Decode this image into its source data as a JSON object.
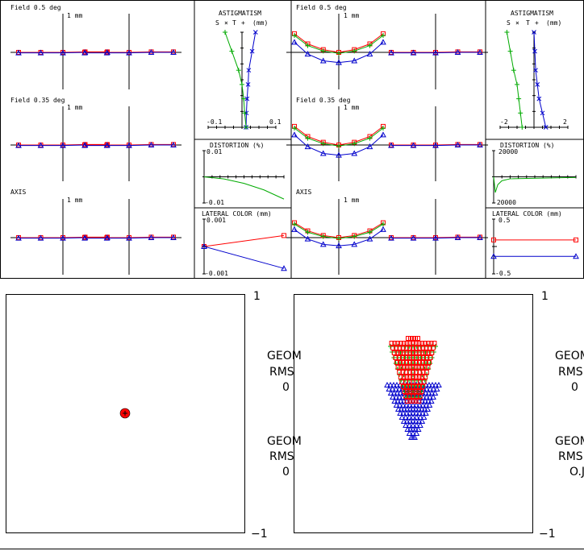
{
  "colors": {
    "red": "#ff0000",
    "green": "#00aa00",
    "blue": "#0000cc",
    "frame": "#000000"
  },
  "ray_fan_labels": {
    "field_05": "Field 0.5 deg",
    "field_035": "Field 0.35 deg",
    "axis": "AXIS",
    "scale": "1 mm"
  },
  "astig_labels": {
    "title": "ASTIGMATISM",
    "s": "S",
    "t": "T",
    "units": "(mm)",
    "s_sym": "×",
    "t_sym": "+"
  },
  "dist_labels": {
    "title": "DISTORTION (%)"
  },
  "latc_labels": {
    "title": "LATERAL COLOR (mm)"
  },
  "spot_labels": {
    "one": "1",
    "minus_one": "−1",
    "geo": "GEOM",
    "rms": "RMS",
    "zero": "0",
    "zero_j": "O.J"
  },
  "chart_data": [
    {
      "type": "line",
      "name": "ray-fan-left",
      "fields": [
        "Field 0.5 deg",
        "Field 0.35 deg",
        "AXIS"
      ],
      "scale": "1 mm",
      "series_colors": [
        "red",
        "green",
        "blue"
      ],
      "description_values": {
        "x": [
          -1,
          -0.6,
          0,
          0.6,
          1
        ],
        "tangential_y": [
          0,
          0,
          0,
          0,
          0
        ],
        "sagittal_y": [
          0,
          0,
          0,
          0,
          0
        ]
      }
    },
    {
      "type": "line",
      "name": "astigmatism-left",
      "title": "ASTIGMATISM",
      "xlim": [
        -0.1,
        0.1
      ],
      "xticks": [
        "-0.1",
        "0.1"
      ],
      "series": [
        {
          "name": "S",
          "color": "blue",
          "x": [
            0.04,
            0.03,
            0.02,
            0.018,
            0.015,
            0.013,
            0.012
          ],
          "y": [
            1,
            0.8,
            0.6,
            0.45,
            0.3,
            0.15,
            0
          ]
        },
        {
          "name": "T",
          "color": "green",
          "x": [
            -0.05,
            -0.03,
            -0.01,
            0.0,
            0.005,
            0.008,
            0.012
          ],
          "y": [
            1,
            0.8,
            0.6,
            0.45,
            0.3,
            0.15,
            0
          ]
        }
      ]
    },
    {
      "type": "line",
      "name": "distortion-left",
      "title": "DISTORTION (%)",
      "ylim": [
        -0.01,
        0.01
      ],
      "yticks": [
        "0.01",
        "-0.01"
      ],
      "series": [
        {
          "color": "green",
          "x": [
            0,
            0.25,
            0.5,
            0.75,
            1.0
          ],
          "y": [
            0,
            -0.0008,
            -0.0025,
            -0.005,
            -0.0085
          ]
        }
      ]
    },
    {
      "type": "line",
      "name": "lateral-color-left",
      "title": "LATERAL COLOR (mm)",
      "ylim": [
        -0.001,
        0.001
      ],
      "yticks": [
        "0.001",
        "-0.001"
      ],
      "series": [
        {
          "color": "red",
          "x": [
            0,
            1
          ],
          "y": [
            0,
            0.0004
          ]
        },
        {
          "color": "blue",
          "x": [
            0,
            1
          ],
          "y": [
            0,
            -0.0008
          ]
        }
      ]
    },
    {
      "type": "line",
      "name": "ray-fan-right",
      "fields": [
        "Field 0.5 deg",
        "Field 0.35 deg",
        "AXIS"
      ],
      "scale": "1 mm",
      "series_colors": [
        "red",
        "green",
        "blue"
      ],
      "description_values": {
        "x": [
          -1,
          -0.7,
          -0.35,
          0,
          0.35,
          0.7,
          1
        ],
        "red_y": [
          0.55,
          0.25,
          0.08,
          0.0,
          0.08,
          0.25,
          0.55
        ],
        "green_y": [
          0.5,
          0.2,
          0.04,
          -0.03,
          0.04,
          0.2,
          0.5
        ],
        "blue_y": [
          0.3,
          -0.05,
          -0.25,
          -0.3,
          -0.25,
          -0.05,
          0.3
        ]
      }
    },
    {
      "type": "line",
      "name": "astigmatism-right",
      "title": "ASTIGMATISM",
      "xlim": [
        -2,
        2
      ],
      "xticks": [
        "-2",
        "2"
      ],
      "series": [
        {
          "name": "S",
          "color": "blue",
          "x": [
            0.0,
            0.05,
            0.1,
            0.2,
            0.3,
            0.5,
            0.7
          ],
          "y": [
            1,
            0.8,
            0.6,
            0.45,
            0.3,
            0.15,
            0
          ]
        },
        {
          "name": "T",
          "color": "green",
          "x": [
            -1.6,
            -1.4,
            -1.2,
            -1.0,
            -0.9,
            -0.8,
            -0.7
          ],
          "y": [
            1,
            0.8,
            0.6,
            0.45,
            0.3,
            0.15,
            0
          ]
        }
      ]
    },
    {
      "type": "line",
      "name": "distortion-right",
      "title": "DISTORTION (%)",
      "ylim": [
        -20000,
        20000
      ],
      "yticks": [
        "20000",
        "-20000"
      ],
      "series": [
        {
          "color": "green",
          "x": [
            0,
            0.02,
            0.05,
            0.1,
            0.2,
            1.0
          ],
          "y": [
            0,
            -12000,
            -6000,
            -3000,
            -1500,
            -500
          ]
        }
      ]
    },
    {
      "type": "line",
      "name": "lateral-color-right",
      "title": "LATERAL COLOR (mm)",
      "ylim": [
        -0.5,
        0.5
      ],
      "yticks": [
        "0.5",
        "-0.5"
      ],
      "series": [
        {
          "color": "red",
          "x": [
            0,
            1
          ],
          "y": [
            0.12,
            0.12
          ]
        },
        {
          "color": "blue",
          "x": [
            0,
            1
          ],
          "y": [
            -0.18,
            -0.18
          ]
        }
      ]
    },
    {
      "type": "scatter",
      "name": "spot-left",
      "xlim": [
        -1,
        1
      ],
      "ylim": [
        -1,
        1
      ],
      "points": [
        {
          "color": "red",
          "x": 0,
          "y": 0.0
        }
      ]
    },
    {
      "type": "scatter",
      "name": "spot-right",
      "xlim": [
        -1,
        1
      ],
      "ylim": [
        -1,
        1
      ],
      "series": [
        {
          "name": "red squares",
          "color": "red",
          "symbol": "square"
        },
        {
          "name": "green plus",
          "color": "green",
          "symbol": "plus"
        },
        {
          "name": "blue triangles",
          "color": "blue",
          "symbol": "triangle"
        }
      ]
    }
  ]
}
